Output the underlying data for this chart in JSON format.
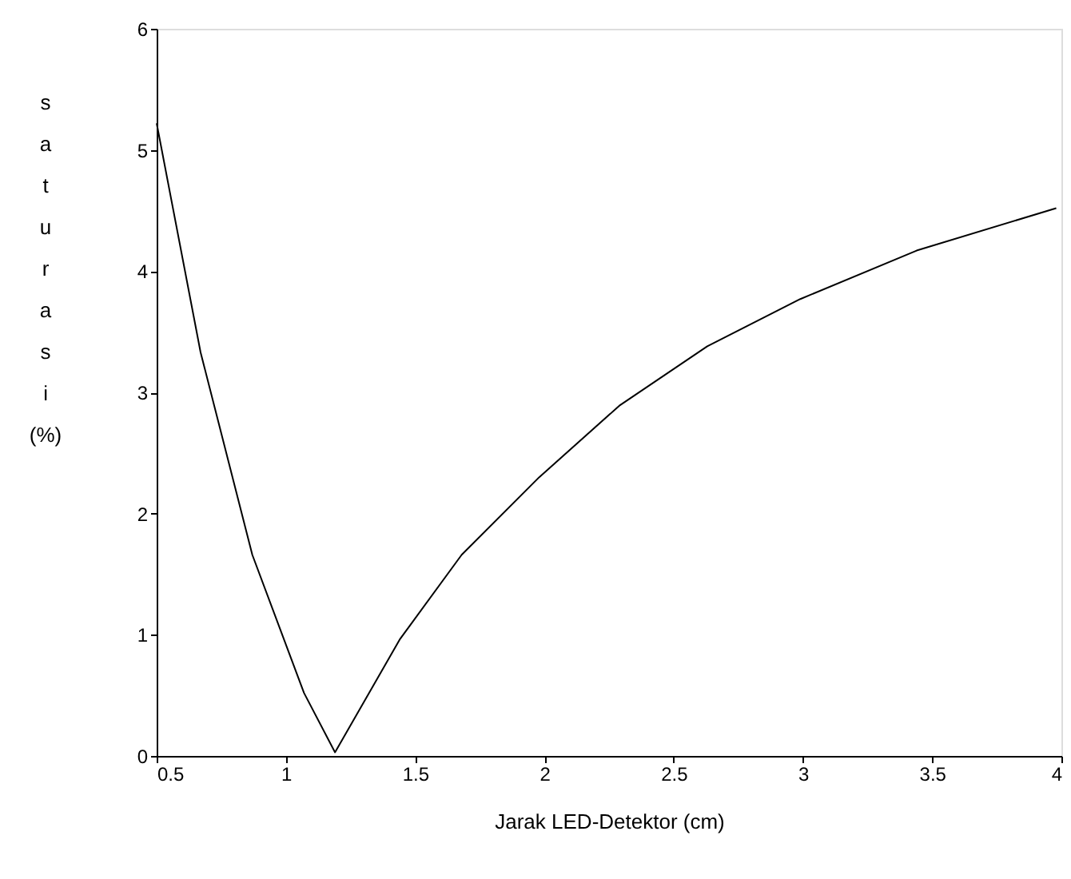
{
  "chart_data": {
    "type": "line",
    "xlabel": "Jarak LED-Detektor (cm)",
    "ylabel": "saturasi (%)",
    "x": [
      0.5,
      0.67,
      0.87,
      1.07,
      1.19,
      1.44,
      1.68,
      1.98,
      2.29,
      2.63,
      2.99,
      3.44,
      3.98
    ],
    "series": [
      {
        "color": "#000000",
        "values": [
          5.22,
          3.33,
          1.66,
          0.52,
          0.03,
          0.96,
          1.66,
          2.3,
          2.89,
          3.38,
          3.77,
          4.17,
          4.52
        ]
      }
    ],
    "xlim": [
      0.5,
      4
    ],
    "xticks": [
      {
        "value": 0.5,
        "label": "0.5"
      },
      1,
      1.5,
      2,
      2.5,
      3,
      3.5,
      4
    ],
    "ylim": [
      0,
      6
    ],
    "yticks": [
      0,
      1,
      2,
      3,
      4,
      5,
      6
    ],
    "grid": false,
    "marker": "none",
    "line_style": "solid"
  }
}
